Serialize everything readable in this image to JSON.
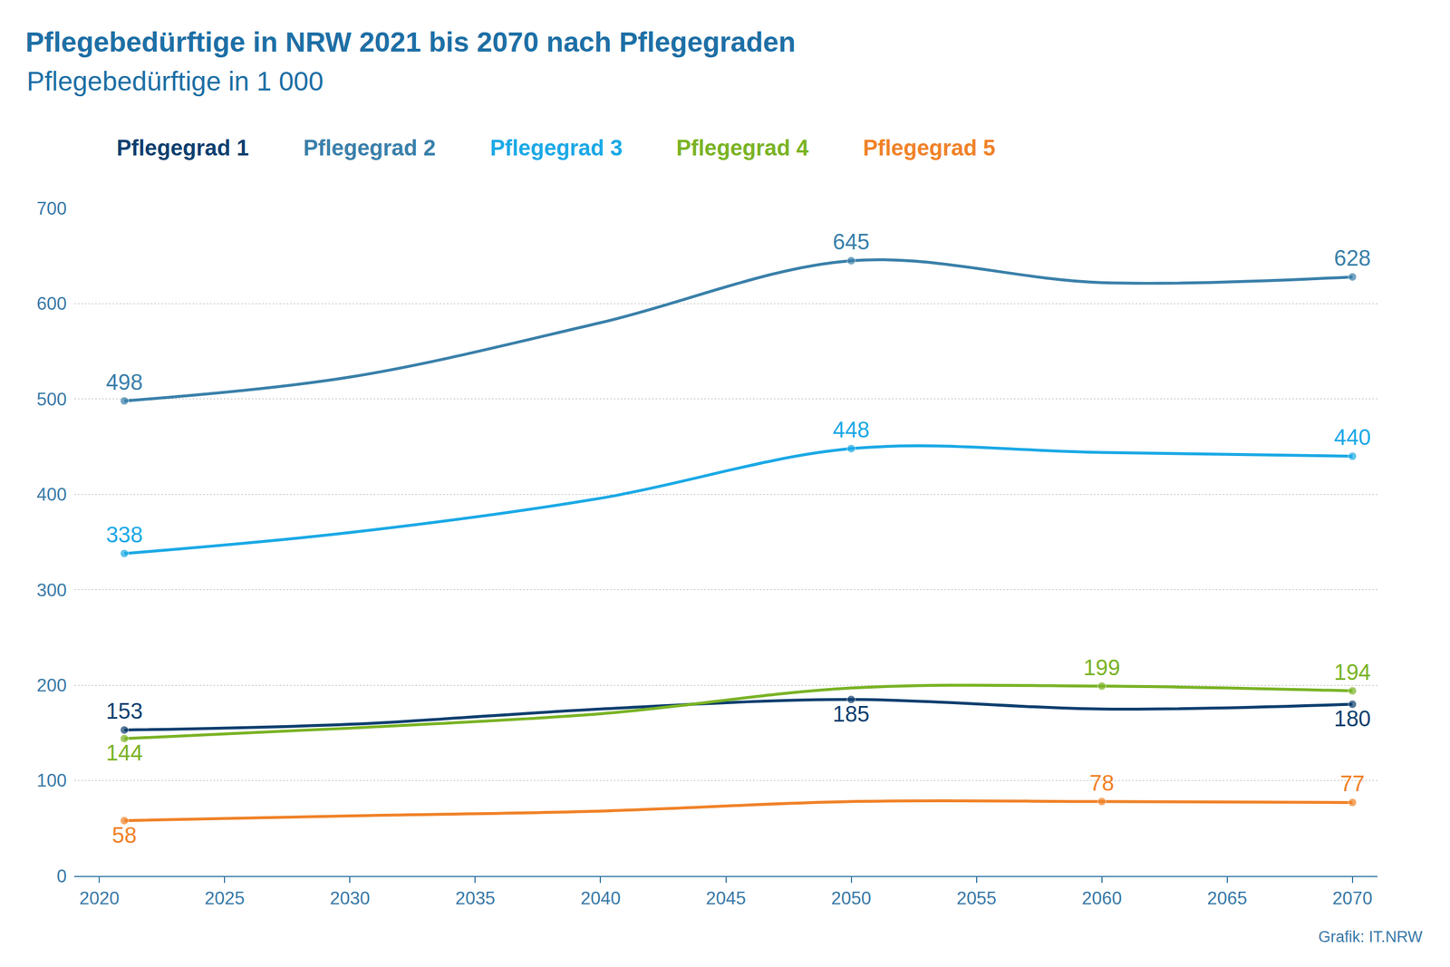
{
  "chart_data": {
    "type": "line",
    "title": "Pflegebedürftige in NRW 2021 bis 2070 nach Pflegegraden",
    "subtitle": "Pflegebedürftige in 1 000",
    "source": "Grafik: IT.NRW",
    "x": [
      2021,
      2030,
      2040,
      2050,
      2060,
      2070
    ],
    "series": [
      {
        "name": "Pflegegrad 1",
        "color": "#0e3f6f",
        "values": [
          153,
          159,
          175,
          185,
          175,
          180
        ],
        "value_labels": [
          "153",
          null,
          null,
          "185",
          null,
          "180"
        ]
      },
      {
        "name": "Pflegegrad 2",
        "color": "#3a80aa",
        "values": [
          498,
          523,
          580,
          645,
          622,
          628
        ],
        "value_labels": [
          "498",
          null,
          null,
          "645",
          null,
          "628"
        ]
      },
      {
        "name": "Pflegegrad 3",
        "color": "#1ba9e6",
        "values": [
          338,
          360,
          396,
          448,
          444,
          440
        ],
        "value_labels": [
          "338",
          null,
          null,
          "448",
          null,
          "440"
        ]
      },
      {
        "name": "Pflegegrad 4",
        "color": "#7ab325",
        "values": [
          144,
          155,
          170,
          197,
          199,
          194
        ],
        "value_labels": [
          "144",
          null,
          null,
          null,
          "199",
          "194"
        ]
      },
      {
        "name": "Pflegegrad 5",
        "color": "#f08228",
        "values": [
          58,
          63,
          68,
          78,
          78,
          77
        ],
        "value_labels": [
          "58",
          null,
          null,
          null,
          "78",
          "77"
        ]
      }
    ],
    "xlim": [
      2019,
      2071
    ],
    "xticks": [
      2020,
      2025,
      2030,
      2035,
      2040,
      2045,
      2050,
      2055,
      2060,
      2065,
      2070
    ],
    "ylim": [
      0,
      700
    ],
    "yticks": [
      0,
      100,
      200,
      300,
      400,
      500,
      600,
      700
    ],
    "grid": true,
    "legend": "top left",
    "data_labels": true,
    "marker": "circle",
    "line_style": "solid"
  }
}
